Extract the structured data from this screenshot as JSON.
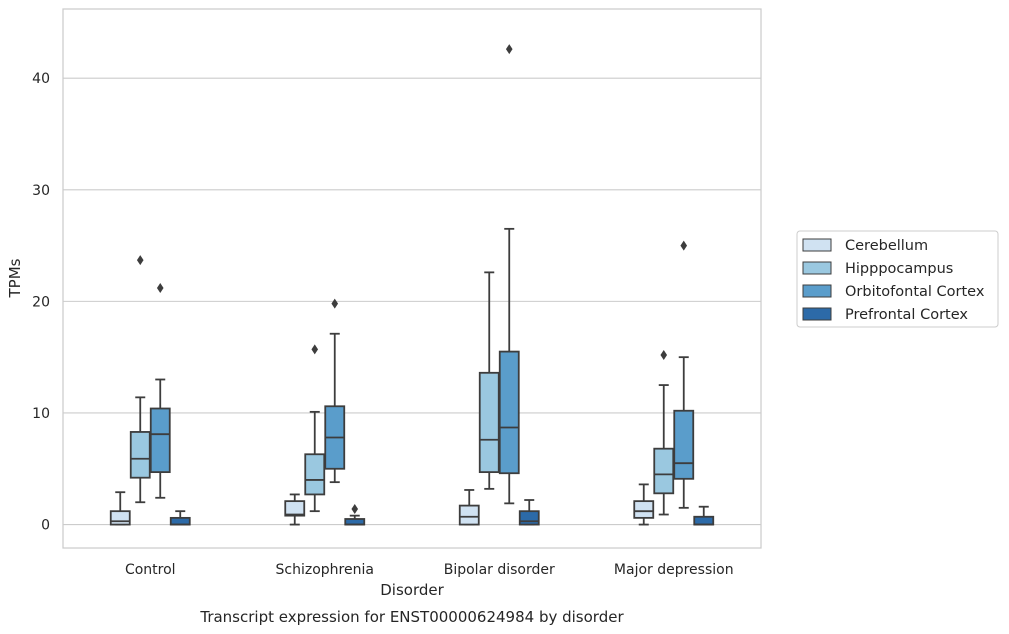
{
  "chart_data": {
    "type": "box",
    "xlabel": "Disorder",
    "ylabel": "TPMs",
    "caption": "Transcript expression for ENST00000624984 by disorder",
    "categories": [
      "Control",
      "Schizophrenia",
      "Bipolar disorder",
      "Major depression"
    ],
    "y_ticks": [
      0,
      10,
      20,
      30,
      40
    ],
    "ylim": [
      -2.1,
      46.2
    ],
    "grid": true,
    "legend_position": "right",
    "series": [
      {
        "name": "Cerebellum",
        "color": "#d0e2f2",
        "boxes": [
          {
            "whisker_low": 0,
            "q1": 0,
            "median": 0.3,
            "q3": 1.2,
            "whisker_high": 2.9,
            "outliers": []
          },
          {
            "whisker_low": 0,
            "q1": 0.8,
            "median": 0.9,
            "q3": 2.1,
            "whisker_high": 2.7,
            "outliers": []
          },
          {
            "whisker_low": 0,
            "q1": 0,
            "median": 0.7,
            "q3": 1.7,
            "whisker_high": 3.1,
            "outliers": []
          },
          {
            "whisker_low": 0,
            "q1": 0.6,
            "median": 1.2,
            "q3": 2.1,
            "whisker_high": 3.6,
            "outliers": []
          }
        ]
      },
      {
        "name": "Hipppocampus",
        "color": "#9ac8e0",
        "boxes": [
          {
            "whisker_low": 2.0,
            "q1": 4.2,
            "median": 5.9,
            "q3": 8.3,
            "whisker_high": 11.4,
            "outliers": [
              23.7
            ]
          },
          {
            "whisker_low": 1.2,
            "q1": 2.7,
            "median": 4.0,
            "q3": 6.3,
            "whisker_high": 10.1,
            "outliers": [
              15.7
            ]
          },
          {
            "whisker_low": 3.2,
            "q1": 4.7,
            "median": 7.6,
            "q3": 13.6,
            "whisker_high": 22.6,
            "outliers": []
          },
          {
            "whisker_low": 0.9,
            "q1": 2.8,
            "median": 4.5,
            "q3": 6.8,
            "whisker_high": 12.5,
            "outliers": [
              15.2
            ]
          }
        ]
      },
      {
        "name": "Orbitofontal Cortex",
        "color": "#5a9dcb",
        "boxes": [
          {
            "whisker_low": 2.4,
            "q1": 4.7,
            "median": 8.1,
            "q3": 10.4,
            "whisker_high": 13.0,
            "outliers": [
              21.2
            ]
          },
          {
            "whisker_low": 3.8,
            "q1": 5.0,
            "median": 7.8,
            "q3": 10.6,
            "whisker_high": 17.1,
            "outliers": [
              19.8
            ]
          },
          {
            "whisker_low": 1.9,
            "q1": 4.6,
            "median": 8.7,
            "q3": 15.5,
            "whisker_high": 26.5,
            "outliers": [
              42.6
            ]
          },
          {
            "whisker_low": 1.5,
            "q1": 4.1,
            "median": 5.5,
            "q3": 10.2,
            "whisker_high": 15.0,
            "outliers": [
              25.0
            ]
          }
        ]
      },
      {
        "name": "Prefrontal Cortex",
        "color": "#2c6aa8",
        "boxes": [
          {
            "whisker_low": 0,
            "q1": 0,
            "median": 0,
            "q3": 0.6,
            "whisker_high": 1.2,
            "outliers": []
          },
          {
            "whisker_low": 0,
            "q1": 0,
            "median": 0,
            "q3": 0.5,
            "whisker_high": 0.8,
            "outliers": [
              1.4
            ]
          },
          {
            "whisker_low": 0,
            "q1": 0,
            "median": 0.3,
            "q3": 1.2,
            "whisker_high": 2.2,
            "outliers": []
          },
          {
            "whisker_low": 0,
            "q1": 0,
            "median": 0,
            "q3": 0.7,
            "whisker_high": 1.6,
            "outliers": []
          }
        ]
      }
    ]
  }
}
